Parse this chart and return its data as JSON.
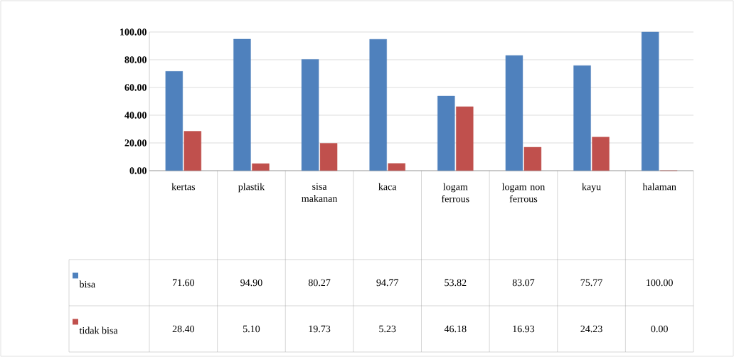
{
  "chart_data": {
    "type": "bar",
    "categories": [
      "kertas",
      "plastik",
      "sisa makanan",
      "kaca",
      "logam ferrous",
      "logam non ferrous",
      "kayu",
      "halaman"
    ],
    "series": [
      {
        "name": "bisa",
        "color": "#4f81bd",
        "values": [
          71.6,
          94.9,
          80.27,
          94.77,
          53.82,
          83.07,
          75.77,
          100.0
        ],
        "value_labels": [
          "71.60",
          "94.90",
          "80.27",
          "94.77",
          "53.82",
          "83.07",
          "75.77",
          "100.00"
        ]
      },
      {
        "name": "tidak bisa",
        "color": "#c0504d",
        "values": [
          28.4,
          5.1,
          19.73,
          5.23,
          46.18,
          16.93,
          24.23,
          0.0
        ],
        "value_labels": [
          "28.40",
          "5.10",
          "19.73",
          "5.23",
          "46.18",
          "16.93",
          "24.23",
          "0.00"
        ]
      }
    ],
    "ylim": [
      0,
      100
    ],
    "yticks": [
      {
        "value": 0,
        "label": "0.00"
      },
      {
        "value": 20,
        "label": "20.00"
      },
      {
        "value": 40,
        "label": "40.00"
      },
      {
        "value": 60,
        "label": "60.00"
      },
      {
        "value": 80,
        "label": "80.00"
      },
      {
        "value": 100,
        "label": "100.00"
      }
    ],
    "grid": "y",
    "legend": "bottom left"
  }
}
